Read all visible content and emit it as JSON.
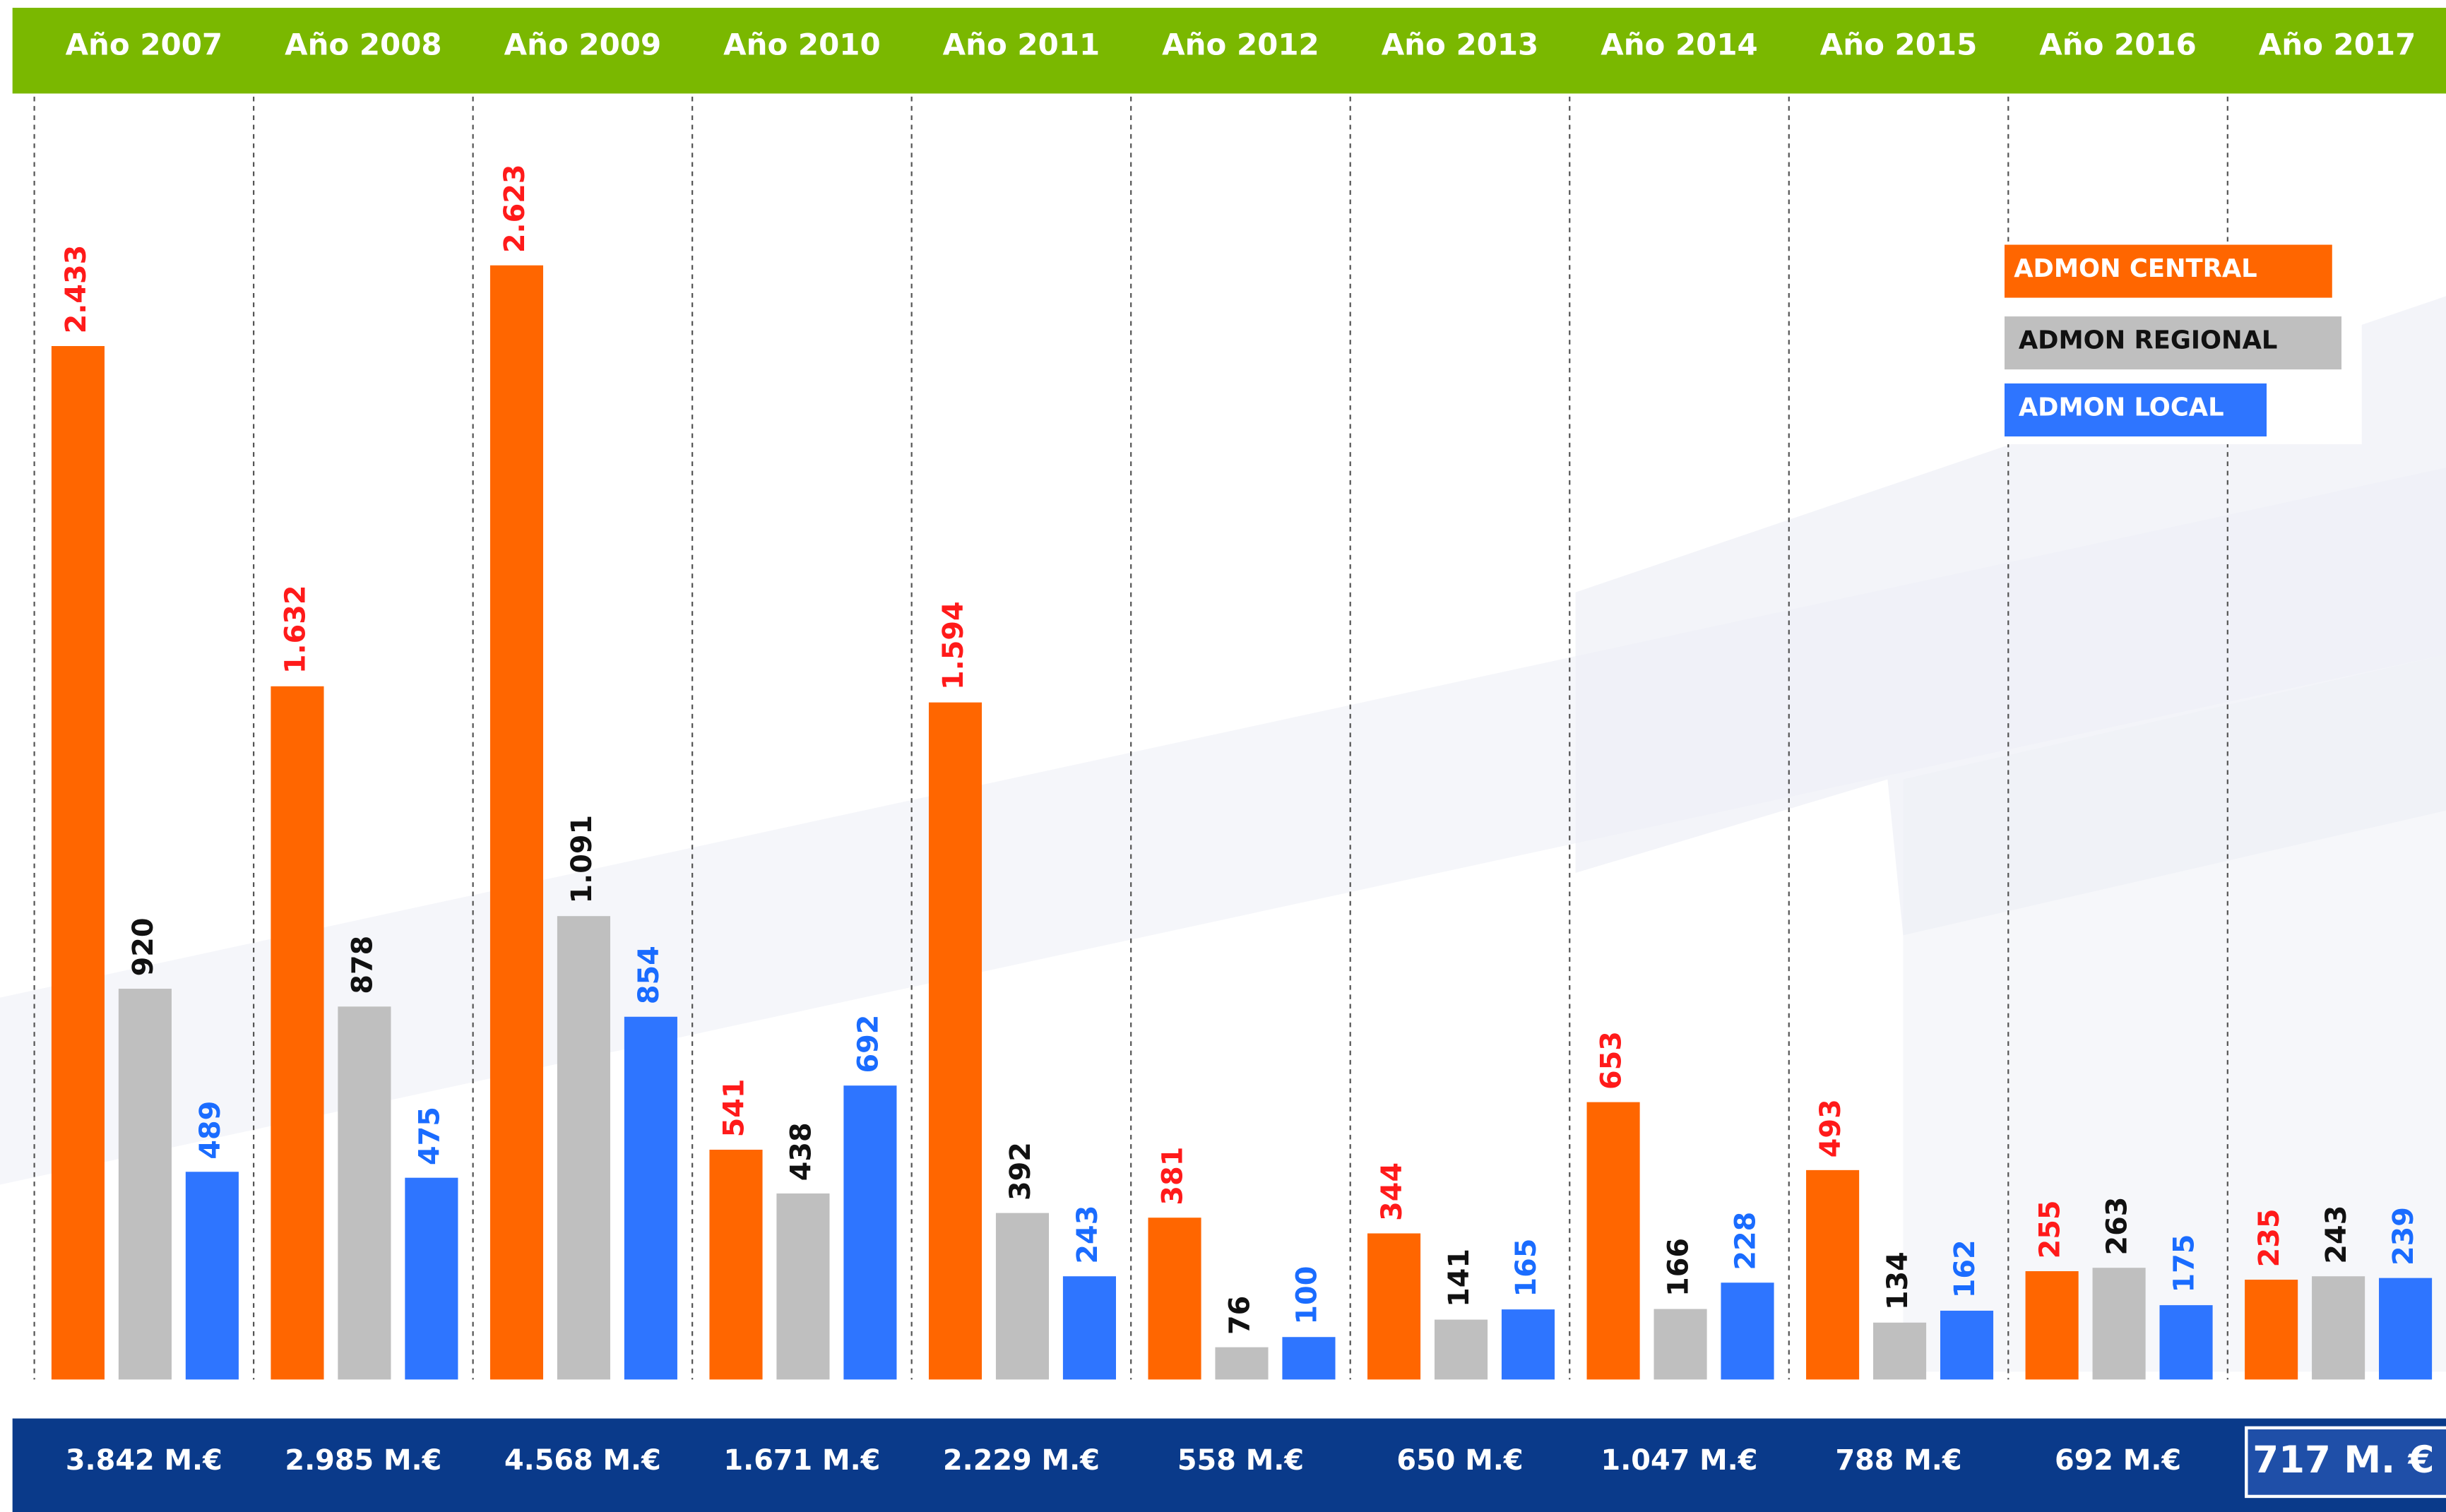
{
  "chart_data": {
    "type": "bar",
    "categories": [
      "Año 2007",
      "Año 2008",
      "Año 2009",
      "Año 2010",
      "Año 2011",
      "Año 2012",
      "Año 2013",
      "Año 2014",
      "Año 2015",
      "Año 2016",
      "Año 2017"
    ],
    "series": [
      {
        "name": "ADMON CENTRAL",
        "color": "#ff6600",
        "label_color": "#ff1a1a",
        "values": [
          2433,
          1632,
          2623,
          541,
          1594,
          381,
          344,
          653,
          493,
          255,
          235
        ],
        "value_labels": [
          "2.433",
          "1.632",
          "2.623",
          "541",
          "1.594",
          "381",
          "344",
          "653",
          "493",
          "255",
          "235"
        ]
      },
      {
        "name": "ADMON REGIONAL",
        "color": "#bfbfbf",
        "label_color": "#111111",
        "values": [
          920,
          878,
          1091,
          438,
          392,
          76,
          141,
          166,
          134,
          263,
          243
        ],
        "value_labels": [
          "920",
          "878",
          "1.091",
          "438",
          "392",
          "76",
          "141",
          "166",
          "134",
          "263",
          "243"
        ]
      },
      {
        "name": "ADMON LOCAL",
        "color": "#2e75ff",
        "label_color": "#1a6cff",
        "values": [
          489,
          475,
          854,
          692,
          243,
          100,
          165,
          228,
          162,
          175,
          239
        ],
        "value_labels": [
          "489",
          "475",
          "854",
          "692",
          "243",
          "100",
          "165",
          "228",
          "162",
          "175",
          "239"
        ]
      }
    ],
    "totals": [
      "3.842 M.€",
      "2.985 M.€",
      "4.568 M.€",
      "1.671 M.€",
      "2.229 M.€",
      "558 M.€",
      "650 M.€",
      "1.047 M.€",
      "788 M.€",
      "692 M.€",
      "717 M. €"
    ],
    "ylim": [
      0,
      3200
    ]
  }
}
